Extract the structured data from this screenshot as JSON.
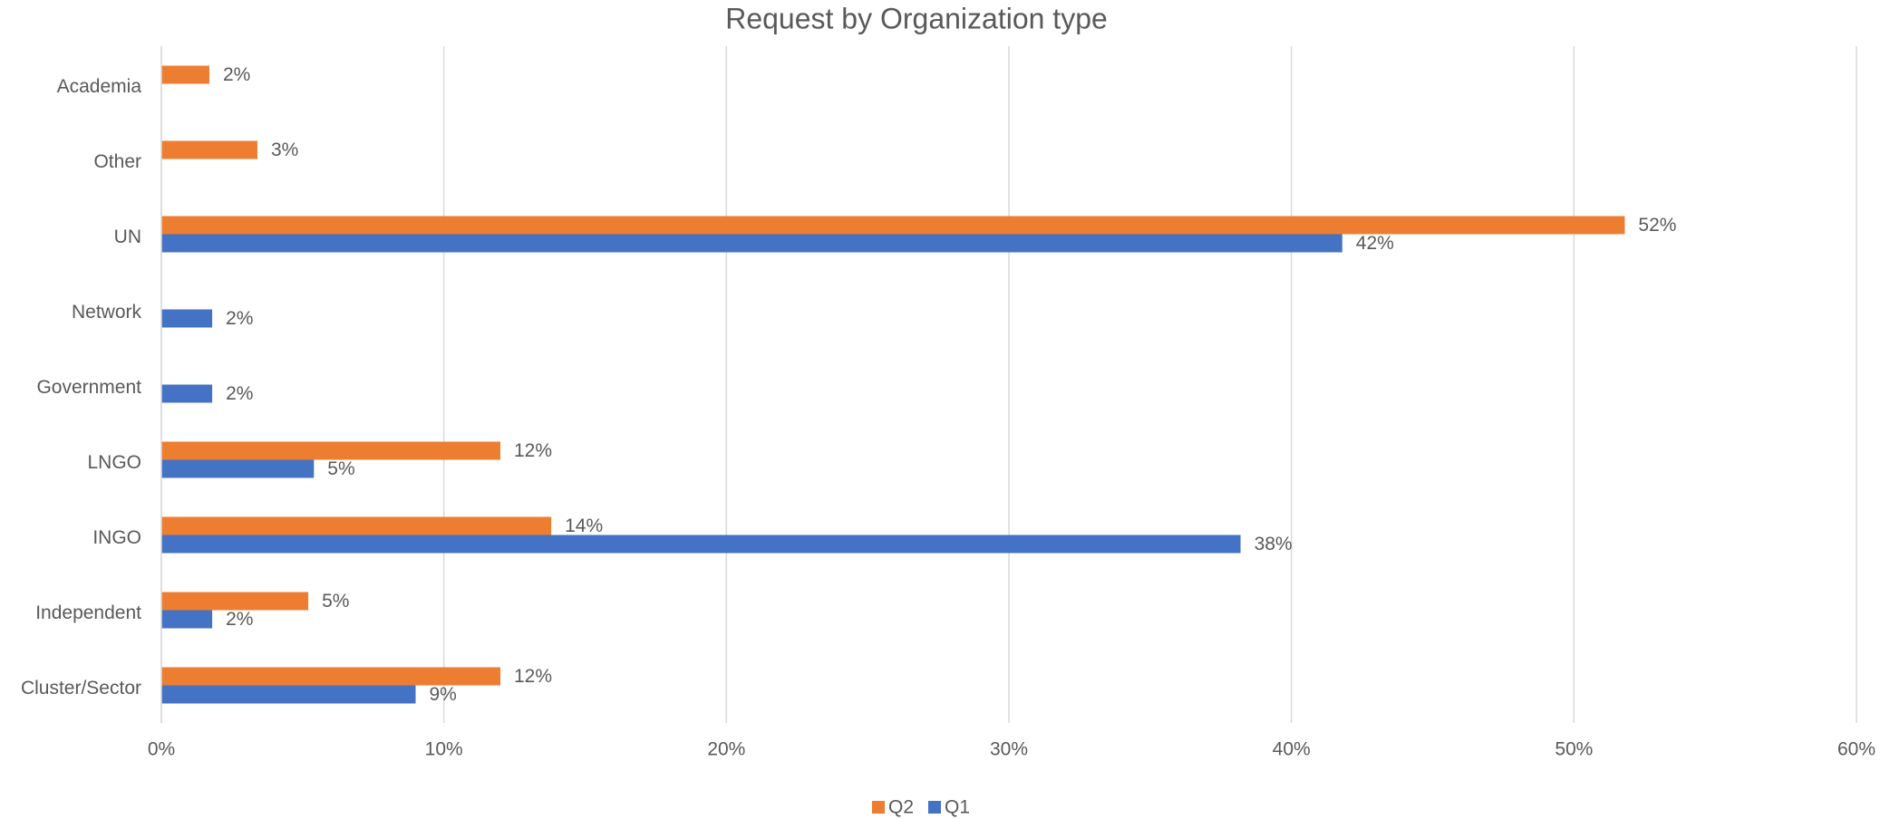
{
  "chart_data": {
    "type": "barh",
    "title": "Request by Organization type",
    "categories": [
      "Cluster/Sector",
      "Independent",
      "INGO",
      "LNGO",
      "Government",
      "Network",
      "UN",
      "Other",
      "Academia"
    ],
    "series": [
      {
        "name": "Q2",
        "color": "#ed7d31",
        "values": [
          12.0,
          5.2,
          13.8,
          12.0,
          null,
          null,
          51.8,
          3.4,
          1.7
        ],
        "value_labels": [
          "12%",
          "5%",
          "14%",
          "12%",
          null,
          null,
          "52%",
          "3%",
          "2%"
        ]
      },
      {
        "name": "Q1",
        "color": "#4472c4",
        "values": [
          9.0,
          1.8,
          38.2,
          5.4,
          1.8,
          1.8,
          41.8,
          null,
          null
        ],
        "value_labels": [
          "9%",
          "2%",
          "38%",
          "5%",
          "2%",
          "2%",
          "42%",
          null,
          null
        ]
      }
    ],
    "xlim": [
      0,
      60
    ],
    "xticks": [
      {
        "value": 0,
        "label": "0%"
      },
      {
        "value": 10,
        "label": "10%"
      },
      {
        "value": 20,
        "label": "20%"
      },
      {
        "value": 30,
        "label": "30%"
      },
      {
        "value": 40,
        "label": "40%"
      },
      {
        "value": 50,
        "label": "50%"
      },
      {
        "value": 60,
        "label": "60%"
      }
    ],
    "grid": true,
    "legend": "bottom"
  }
}
